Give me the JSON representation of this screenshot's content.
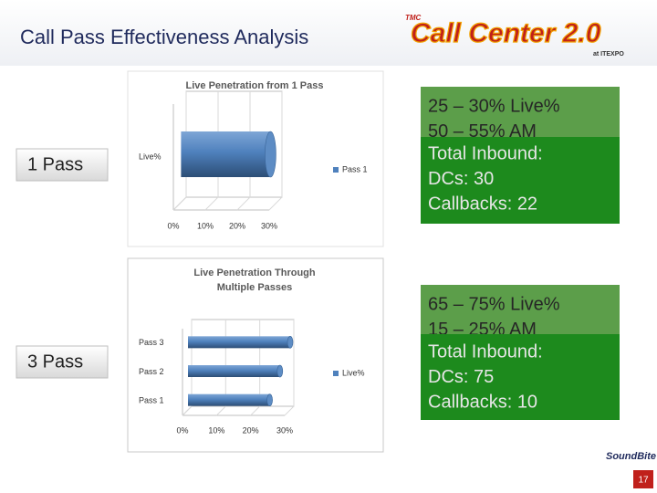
{
  "slide": {
    "title": "Call Pass Effectiveness Analysis",
    "logo_badge": "TMC",
    "logo_brand": "Call Center 2.0",
    "logo_sub": "at ITEXPO",
    "sponsor": "SoundBite",
    "page": "17",
    "sections": [
      {
        "label": "1 Pass",
        "lines": [
          "25 – 30% Live%",
          "50 – 55% AM",
          "Total Inbound:",
          "DCs:  30",
          "Callbacks:  22"
        ]
      },
      {
        "label": "3 Pass",
        "lines": [
          "65 – 75% Live%",
          "15 – 25% AM",
          "Total Inbound:",
          "DCs:  75",
          "Callbacks:  10"
        ]
      }
    ]
  },
  "chart_data": [
    {
      "type": "bar",
      "orientation": "horizontal",
      "title": "Live Penetration from 1 Pass",
      "categories": [
        "Live%"
      ],
      "series": [
        {
          "name": "Pass 1",
          "color": "#4f81bd",
          "values": [
            28
          ]
        }
      ],
      "xlim": [
        0,
        30
      ],
      "xticks": [
        {
          "value": 0,
          "label": "0%"
        },
        {
          "value": 10,
          "label": "10%"
        },
        {
          "value": 20,
          "label": "20%"
        },
        {
          "value": 30,
          "label": "30%"
        }
      ],
      "legend": "right"
    },
    {
      "type": "bar",
      "orientation": "horizontal",
      "title": [
        "Live Penetration Through",
        "Multiple Passes"
      ],
      "categories": [
        "Pass 1",
        "Pass 2",
        "Pass 3"
      ],
      "series": [
        {
          "name": "Live%",
          "color": "#4f81bd",
          "values": [
            24,
            27,
            30
          ]
        }
      ],
      "xlim": [
        0,
        30
      ],
      "xticks": [
        {
          "value": 0,
          "label": "0%"
        },
        {
          "value": 10,
          "label": "10%"
        },
        {
          "value": 20,
          "label": "20%"
        },
        {
          "value": 30,
          "label": "30%"
        }
      ],
      "legend": "right"
    }
  ]
}
